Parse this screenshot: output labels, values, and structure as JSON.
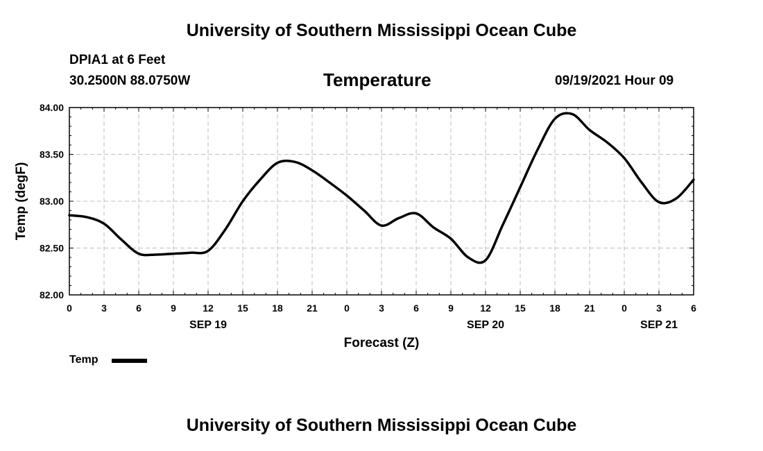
{
  "header": {
    "title_top": "University of Southern Mississippi Ocean Cube",
    "station": "DPIA1 at 6 Feet",
    "coords": "30.2500N  88.0750W",
    "datetime": "09/19/2021 Hour 09",
    "title_bottom": "University of Southern Mississippi Ocean Cube"
  },
  "legend": {
    "label": "Temp"
  },
  "chart_data": {
    "type": "line",
    "title": "Temperature",
    "xlabel": "Forecast (Z)",
    "ylabel": "Temp (degF)",
    "xlim": [
      0,
      54
    ],
    "ylim": [
      82.0,
      84.0
    ],
    "x_ticks": [
      0,
      3,
      6,
      9,
      12,
      15,
      18,
      21,
      24,
      27,
      30,
      33,
      36,
      39,
      42,
      45,
      48,
      51,
      54
    ],
    "x_tick_labels": [
      "0",
      "3",
      "6",
      "9",
      "12",
      "15",
      "18",
      "21",
      "0",
      "3",
      "6",
      "9",
      "12",
      "15",
      "18",
      "21",
      "0",
      "3",
      "6"
    ],
    "y_ticks": [
      82.0,
      82.5,
      83.0,
      83.5,
      84.0
    ],
    "y_tick_labels": [
      "82.00",
      "82.50",
      "83.00",
      "83.50",
      "84.00"
    ],
    "date_labels": [
      {
        "x": 12,
        "label": "SEP 19"
      },
      {
        "x": 36,
        "label": "SEP 20"
      },
      {
        "x": 51,
        "label": "SEP 21"
      }
    ],
    "grid": true,
    "legend_position": "bottom-left",
    "series": [
      {
        "name": "Temp",
        "color": "#000000",
        "x": [
          0,
          1.5,
          3,
          4.5,
          6,
          7.5,
          9,
          10.5,
          12,
          13.5,
          15,
          16.5,
          18,
          19.5,
          21,
          22.5,
          24,
          25.5,
          27,
          28.5,
          30,
          31.5,
          33,
          34.5,
          36,
          37.5,
          39,
          40.5,
          42,
          43.5,
          45,
          46.5,
          48,
          49.5,
          51,
          52.5,
          54
        ],
        "values": [
          82.85,
          82.83,
          82.76,
          82.59,
          82.44,
          82.43,
          82.44,
          82.45,
          82.47,
          82.7,
          83.0,
          83.23,
          83.41,
          83.42,
          83.33,
          83.2,
          83.06,
          82.9,
          82.74,
          82.82,
          82.87,
          82.72,
          82.6,
          82.4,
          82.37,
          82.75,
          83.15,
          83.55,
          83.88,
          83.93,
          83.76,
          83.63,
          83.46,
          83.2,
          82.99,
          83.03,
          83.23
        ]
      }
    ]
  }
}
